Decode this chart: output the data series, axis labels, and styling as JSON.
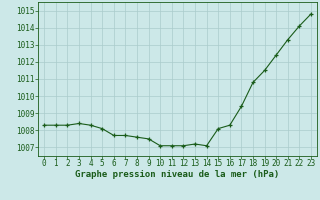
{
  "x": [
    0,
    1,
    2,
    3,
    4,
    5,
    6,
    7,
    8,
    9,
    10,
    11,
    12,
    13,
    14,
    15,
    16,
    17,
    18,
    19,
    20,
    21,
    22,
    23
  ],
  "y": [
    1008.3,
    1008.3,
    1008.3,
    1008.4,
    1008.3,
    1008.1,
    1007.7,
    1007.7,
    1007.6,
    1007.5,
    1007.1,
    1007.1,
    1007.1,
    1007.2,
    1007.1,
    1008.1,
    1008.3,
    1009.4,
    1010.8,
    1011.5,
    1012.4,
    1013.3,
    1014.1,
    1014.8
  ],
  "line_color": "#1a5c1a",
  "marker_color": "#1a5c1a",
  "bg_color": "#cce8e8",
  "grid_color": "#aacccc",
  "xlabel": "Graphe pression niveau de la mer (hPa)",
  "xlabel_color": "#1a5c1a",
  "tick_color": "#1a5c1a",
  "ylim": [
    1006.5,
    1015.5
  ],
  "yticks": [
    1007,
    1008,
    1009,
    1010,
    1011,
    1012,
    1013,
    1014,
    1015
  ],
  "xticks": [
    0,
    1,
    2,
    3,
    4,
    5,
    6,
    7,
    8,
    9,
    10,
    11,
    12,
    13,
    14,
    15,
    16,
    17,
    18,
    19,
    20,
    21,
    22,
    23
  ],
  "tick_fontsize": 5.5,
  "xlabel_fontsize": 6.5,
  "xlim": [
    -0.5,
    23.5
  ]
}
